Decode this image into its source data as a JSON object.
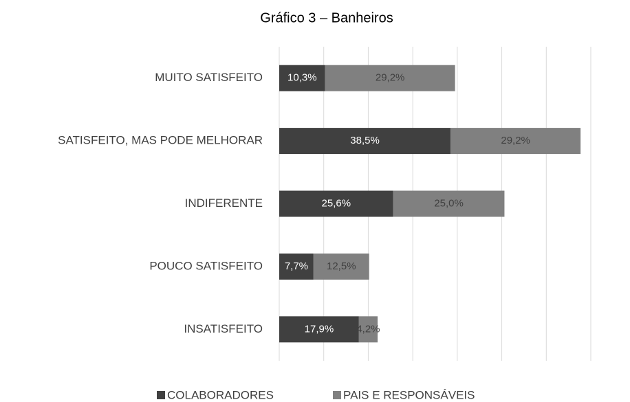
{
  "chart_data": {
    "type": "stacked_barh",
    "title": "Gráfico 3 – Banheiros",
    "categories": [
      "MUITO SATISFEITO",
      "SATISFEITO, MAS PODE MELHORAR",
      "INDIFERENTE",
      "POUCO SATISFEITO",
      "INSATISFEITO"
    ],
    "series": [
      {
        "name": "COLABORADORES",
        "color": "#404040",
        "values": [
          10.3,
          38.5,
          25.6,
          7.7,
          17.9
        ],
        "value_labels": [
          "10,3%",
          "38,5%",
          "25,6%",
          "7,7%",
          "17,9%"
        ]
      },
      {
        "name": "PAIS E RESPONSÁVEIS",
        "color": "#808080",
        "values": [
          29.2,
          29.2,
          25.0,
          12.5,
          4.2
        ],
        "value_labels": [
          "29,2%",
          "29,2%",
          "25,0%",
          "12,5%",
          "4,2%"
        ]
      }
    ],
    "xlim": [
      0,
      70
    ],
    "xticks": [
      0,
      10,
      20,
      30,
      40,
      50,
      60,
      70
    ],
    "grid": true,
    "legend": "bottom"
  }
}
